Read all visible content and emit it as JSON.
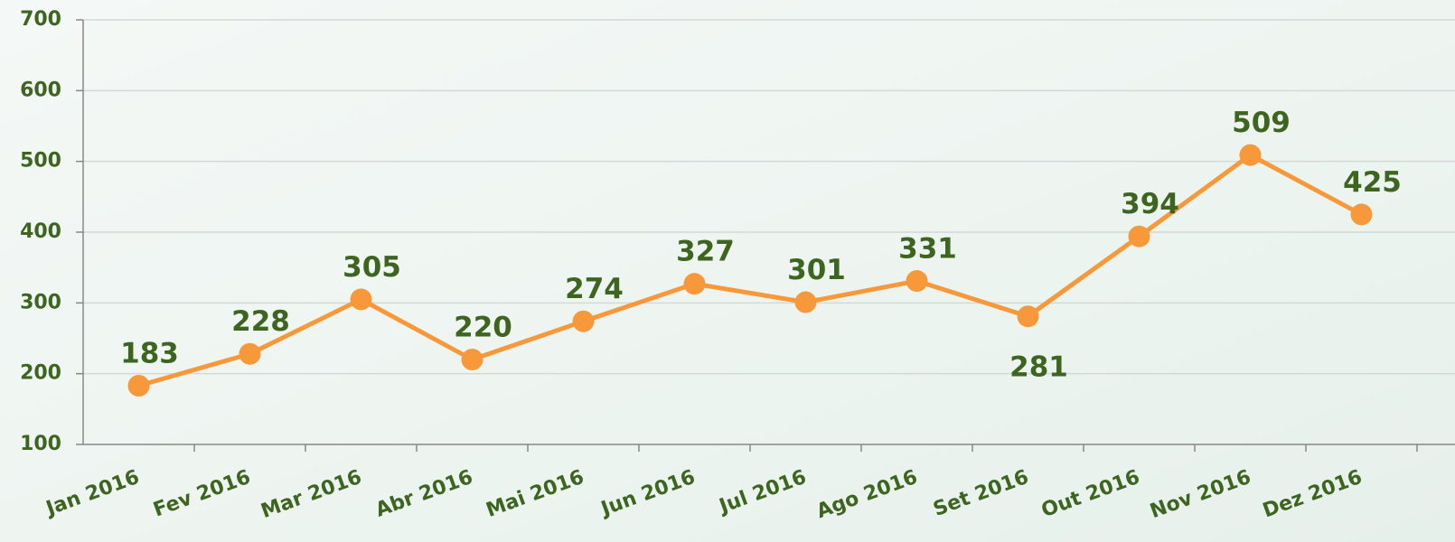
{
  "chart_data": {
    "type": "line",
    "categories": [
      "Jan 2016",
      "Fev 2016",
      "Mar 2016",
      "Abr 2016",
      "Mai 2016",
      "Jun 2016",
      "Jul 2016",
      "Ago 2016",
      "Set 2016",
      "Out 2016",
      "Nov 2016",
      "Dez 2016"
    ],
    "series": [
      {
        "name": null,
        "color": "#f7993b",
        "values": [
          183,
          228,
          305,
          220,
          274,
          327,
          301,
          331,
          281,
          394,
          509,
          425
        ]
      }
    ],
    "ylim": [
      100,
      700
    ],
    "yticks": [
      100,
      200,
      300,
      400,
      500,
      600,
      700
    ],
    "grid": true
  }
}
